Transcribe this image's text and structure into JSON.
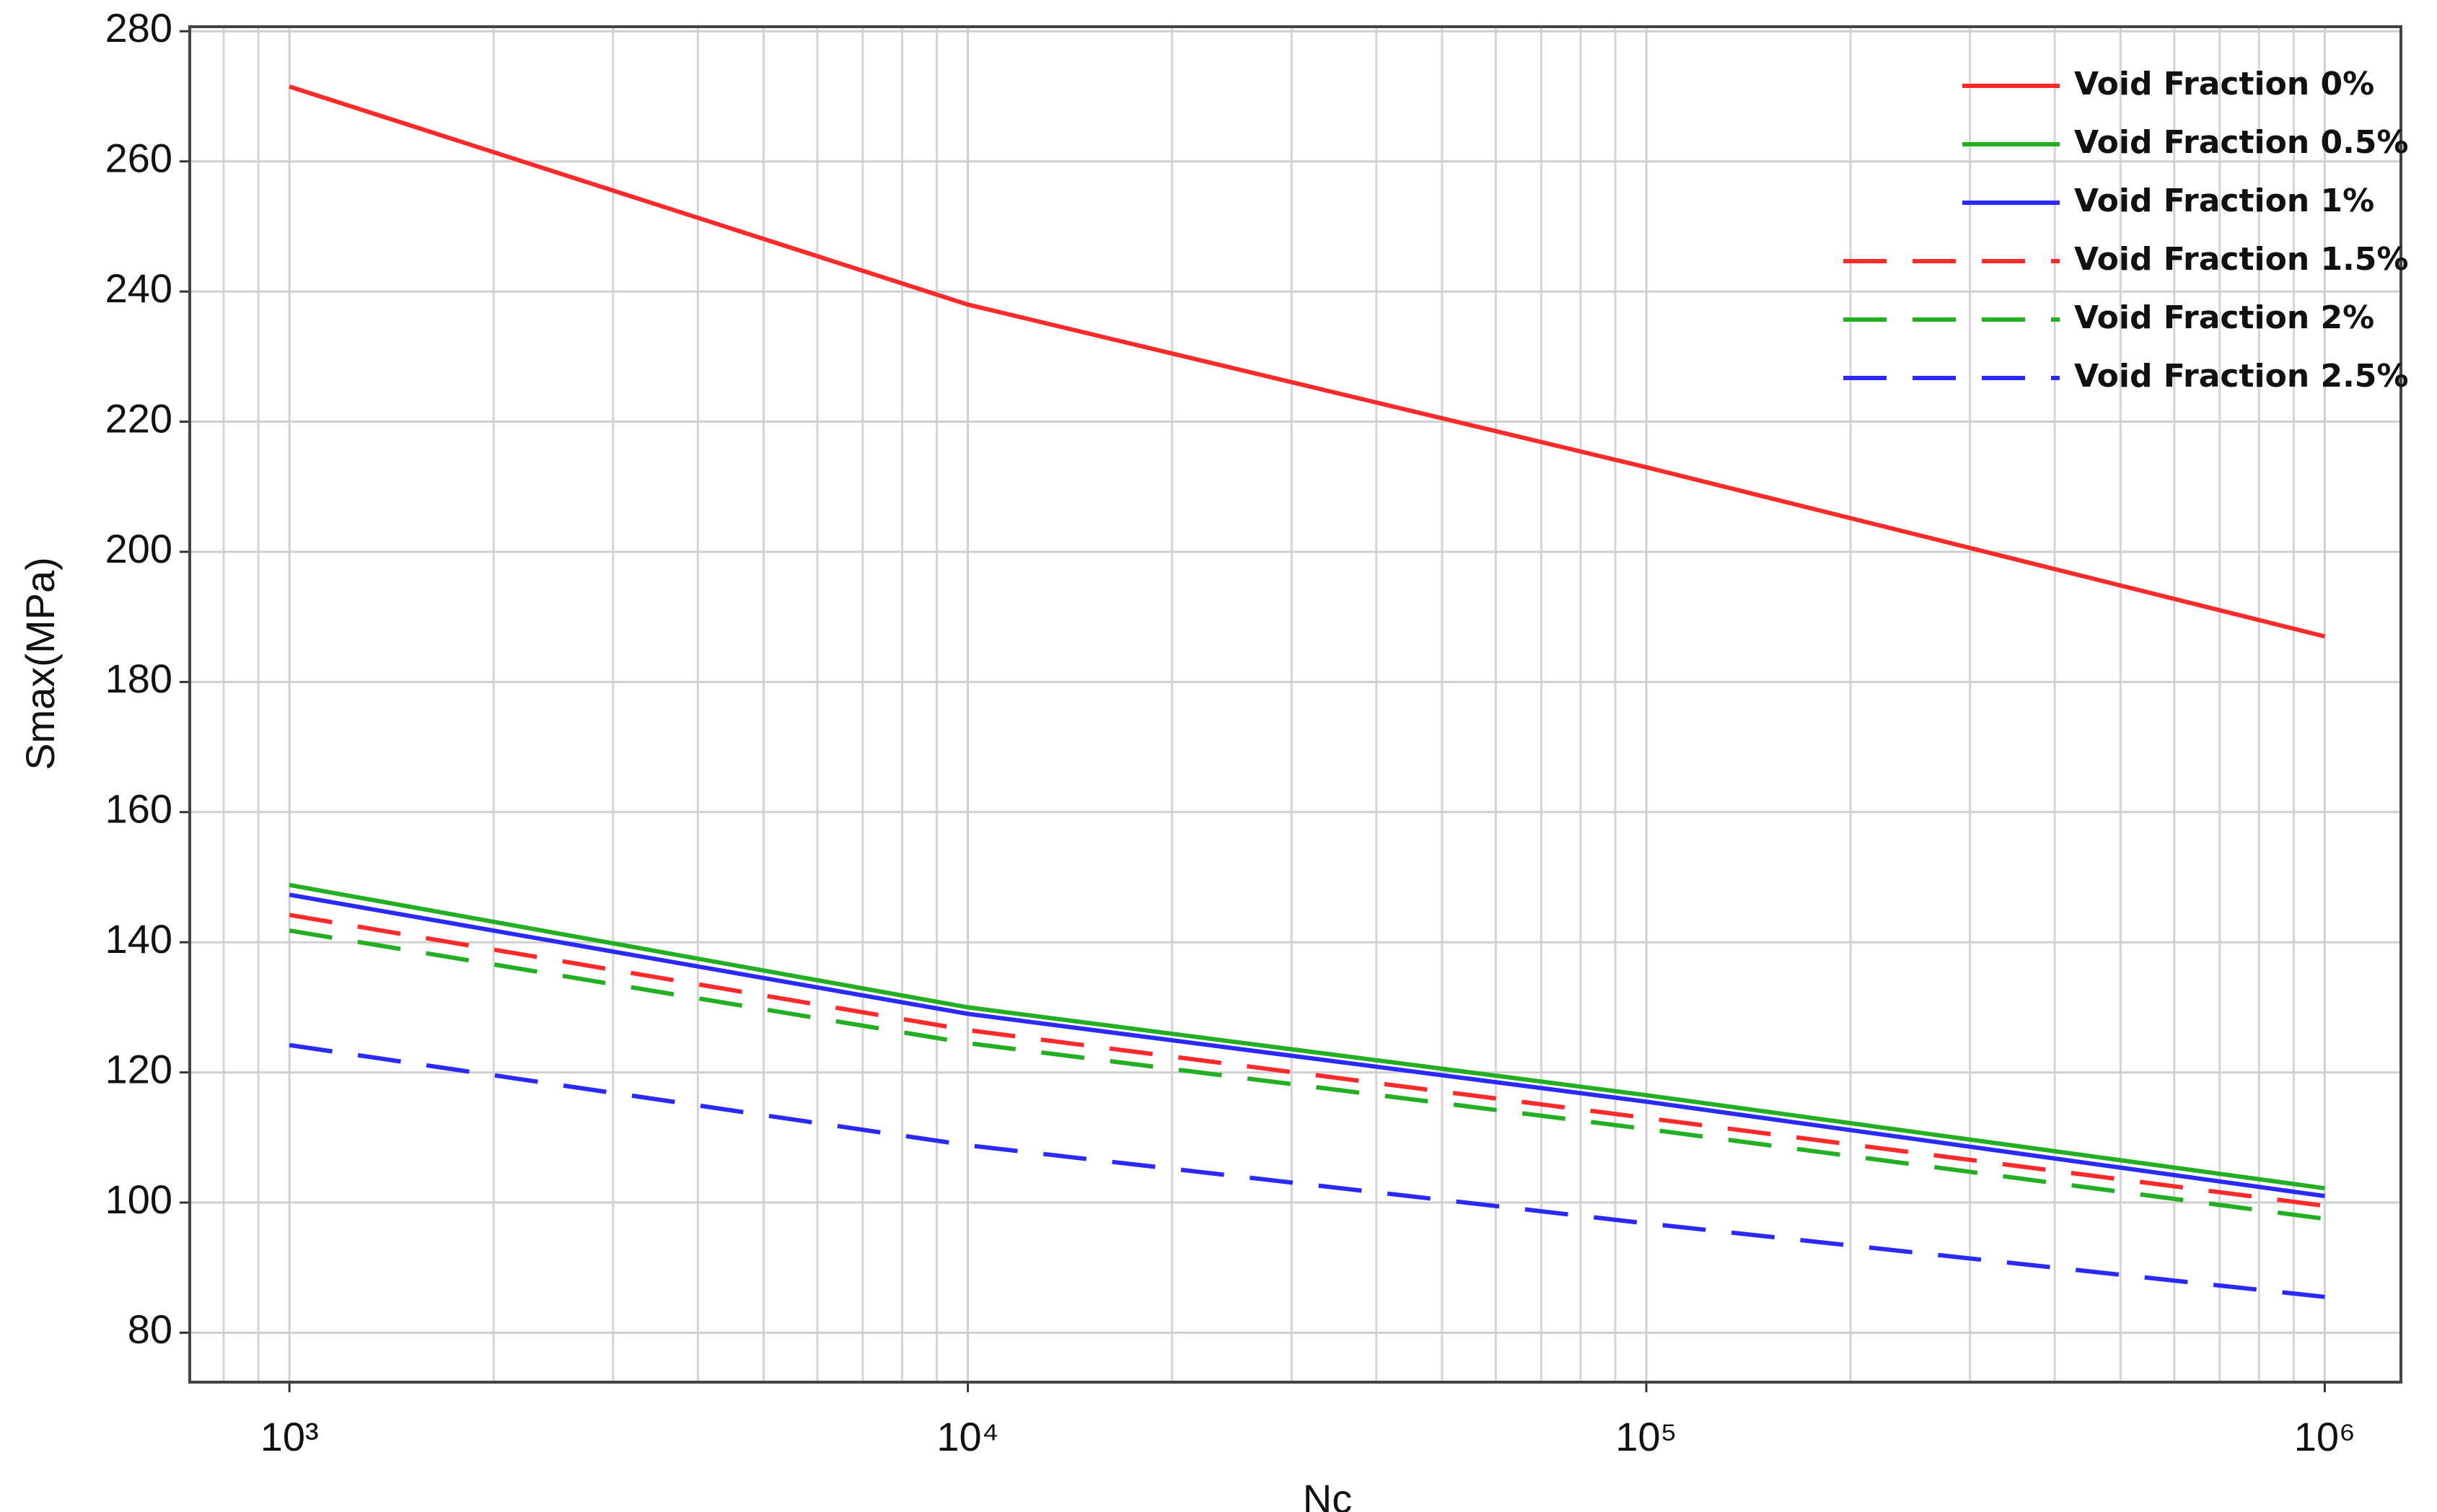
{
  "chart_data": {
    "type": "line",
    "xlabel": "Nc",
    "ylabel": "Smax(MPa)",
    "xscale": "log",
    "x": [
      1000,
      10000,
      100000,
      1000000
    ],
    "series": [
      {
        "name": "Void Fraction 0%",
        "color": "#ff2a2a",
        "dashed": false,
        "values": [
          271.5,
          238,
          213,
          187
        ]
      },
      {
        "name": "Void Fraction 0.5%",
        "color": "#22b022",
        "dashed": false,
        "values": [
          148.8,
          130,
          116.5,
          102.2
        ]
      },
      {
        "name": "Void Fraction 1%",
        "color": "#2a2aff",
        "dashed": false,
        "values": [
          147.3,
          129,
          115.5,
          101
        ]
      },
      {
        "name": "Void Fraction 1.5%",
        "color": "#ff2a2a",
        "dashed": true,
        "values": [
          144.2,
          126.5,
          113,
          99.5
        ]
      },
      {
        "name": "Void Fraction 2%",
        "color": "#22b022",
        "dashed": true,
        "values": [
          141.8,
          124.5,
          111.3,
          97.5
        ]
      },
      {
        "name": "Void Fraction 2.5%",
        "color": "#2a2aff",
        "dashed": true,
        "values": [
          124.2,
          108.8,
          96.8,
          85.5
        ]
      }
    ],
    "xlim": [
      713,
      1295000
    ],
    "ylim": [
      72.4,
      280.7
    ],
    "xticks": [
      {
        "value": 1000,
        "label": "10³"
      },
      {
        "value": 10000,
        "label": "10⁴"
      },
      {
        "value": 100000,
        "label": "10⁵"
      },
      {
        "value": 1000000,
        "label": "10⁶"
      }
    ],
    "xminorticks": [
      800,
      900,
      2000,
      3000,
      4000,
      5000,
      6000,
      7000,
      8000,
      9000,
      20000,
      30000,
      40000,
      50000,
      60000,
      70000,
      80000,
      90000,
      200000,
      300000,
      400000,
      500000,
      600000,
      700000,
      800000,
      900000
    ],
    "yticks": [
      80,
      100,
      120,
      140,
      160,
      180,
      200,
      220,
      240,
      260,
      280
    ],
    "grid": true,
    "legend": "upper right"
  }
}
